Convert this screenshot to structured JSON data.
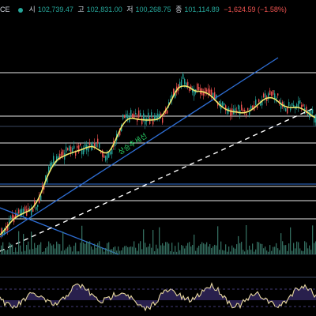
{
  "header": {
    "symbol_tail": "CE",
    "open_label": "시",
    "open": "102,739.47",
    "high_label": "고",
    "high": "102,831.00",
    "low_label": "저",
    "low": "100,268.75",
    "close_label": "종",
    "close": "101,114.89",
    "change": "−1,624.59 (−1.58%)"
  },
  "annotation": {
    "trendline_label": "상승추세선"
  },
  "colors": {
    "background": "#000000",
    "candle_up": "#26a69a",
    "candle_down": "#ef5350",
    "moving_average": "#f2e96b",
    "trendline": "#2f6fd6",
    "horizontal_levels": "#e8e8e8",
    "dashed_line": "#ffffff",
    "volume": "#3c7f6e",
    "oscillator_line": "#e9d9a0",
    "oscillator_fill": "#4a3a8c"
  },
  "chart_data": {
    "type": "line",
    "title": "",
    "series": [],
    "horizontal_levels": 8,
    "lines": [
      "ascending trendline",
      "descending trendline",
      "dashed diagonal"
    ],
    "panes": [
      "price with moving average",
      "volume",
      "oscillator"
    ],
    "grid": false,
    "legend": "none"
  }
}
